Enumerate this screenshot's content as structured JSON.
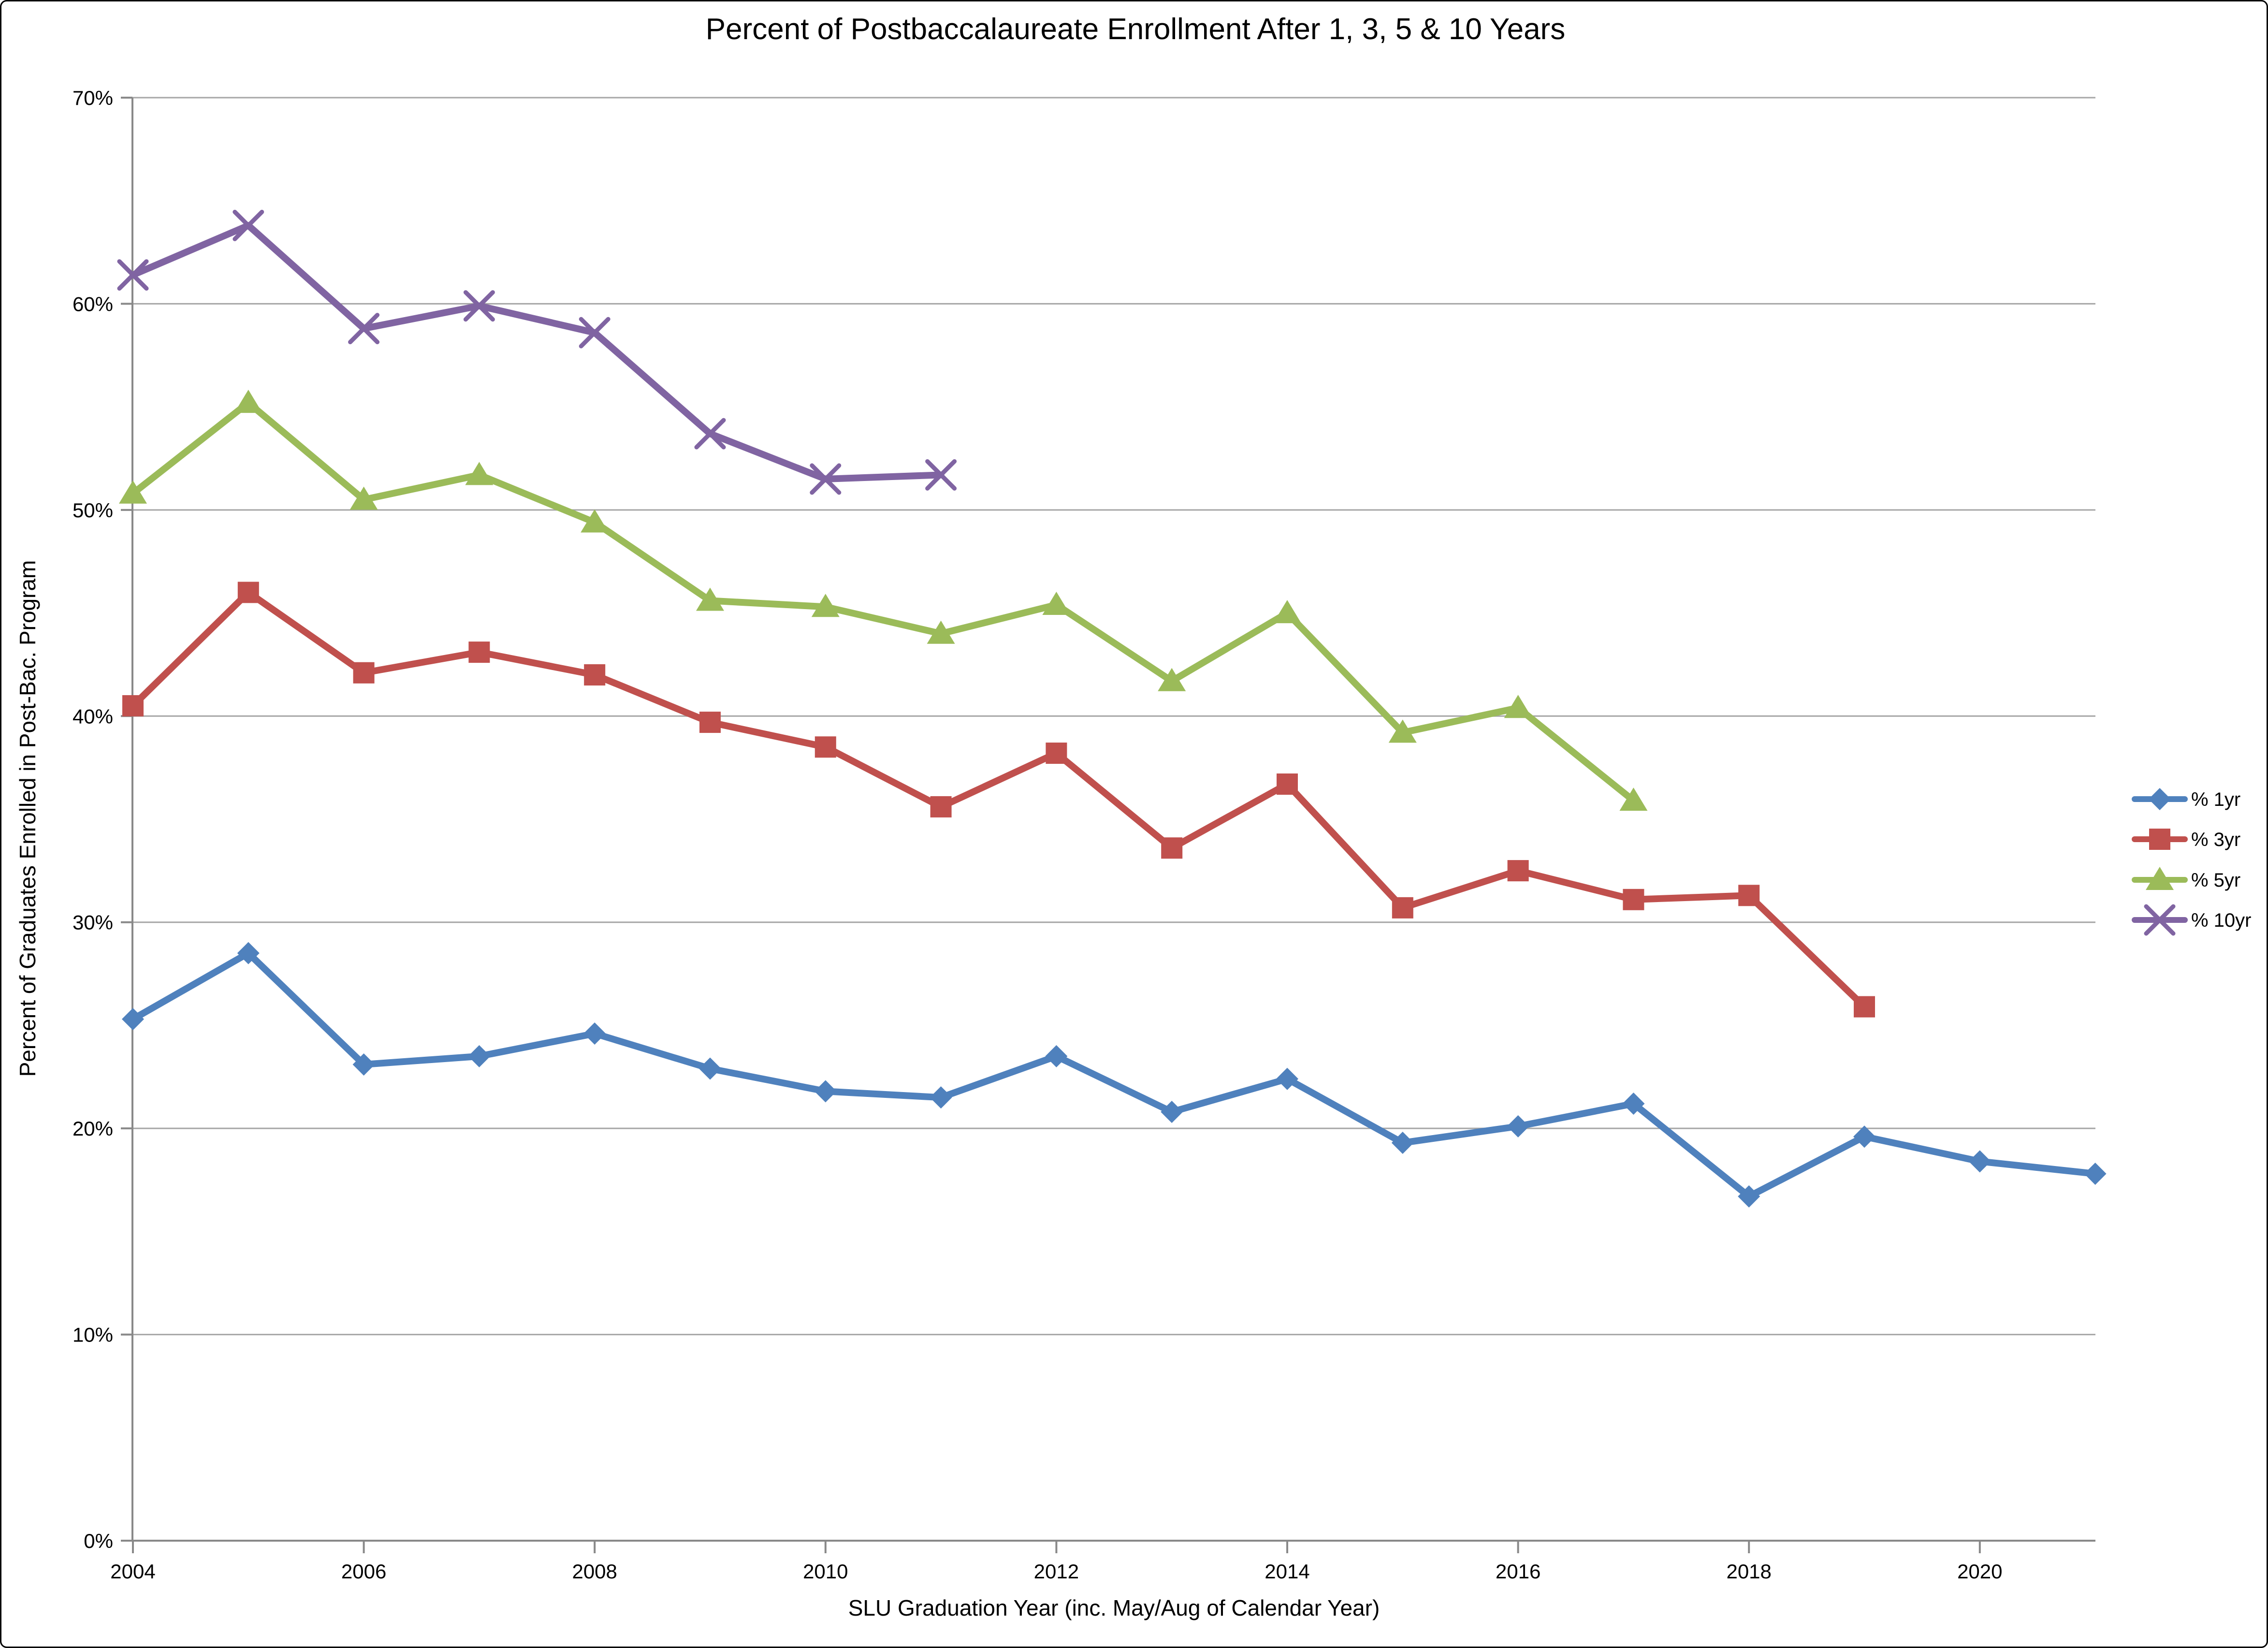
{
  "chart_data": {
    "type": "line",
    "title": "Percent of Postbaccalaureate Enrollment After 1, 3, 5 & 10 Years",
    "xlabel": "SLU Graduation Year (inc. May/Aug of Calendar Year)",
    "ylabel": "Percent of Graduates Enrolled in Post-Bac. Program",
    "x": [
      2004,
      2005,
      2006,
      2007,
      2008,
      2009,
      2010,
      2011,
      2012,
      2013,
      2014,
      2015,
      2016,
      2017,
      2018,
      2019,
      2020,
      2021
    ],
    "x_tick_labels": [
      "2004",
      "2006",
      "2008",
      "2010",
      "2012",
      "2014",
      "2016",
      "2018",
      "2020"
    ],
    "y_ticks": [
      "0%",
      "10%",
      "20%",
      "30%",
      "40%",
      "50%",
      "60%",
      "70%"
    ],
    "ylim": [
      0,
      70
    ],
    "grid": true,
    "legend_position": "right",
    "series": [
      {
        "name": "% 1yr",
        "color": "#4F81BD",
        "marker": "diamond",
        "values": [
          25.3,
          28.5,
          23.1,
          23.5,
          24.6,
          22.9,
          21.8,
          21.5,
          23.5,
          20.8,
          22.4,
          19.3,
          20.1,
          21.2,
          16.7,
          19.6,
          18.4,
          17.8
        ]
      },
      {
        "name": "% 3yr",
        "color": "#C0504D",
        "marker": "square",
        "values": [
          40.5,
          46.0,
          42.1,
          43.1,
          42.0,
          39.7,
          38.5,
          35.6,
          38.2,
          33.6,
          36.7,
          30.7,
          32.5,
          31.1,
          31.3,
          25.9,
          null,
          null
        ]
      },
      {
        "name": "% 5yr",
        "color": "#9BBB59",
        "marker": "triangle",
        "values": [
          50.8,
          55.2,
          50.5,
          51.7,
          49.4,
          45.6,
          45.3,
          44.0,
          45.4,
          41.7,
          45.0,
          39.2,
          40.4,
          35.9,
          null,
          null,
          null,
          null
        ]
      },
      {
        "name": "% 10yr",
        "color": "#8064A2",
        "marker": "x",
        "values": [
          61.4,
          63.8,
          58.8,
          59.9,
          58.6,
          53.7,
          51.5,
          51.7,
          null,
          null,
          null,
          null,
          null,
          null,
          null,
          null,
          null,
          null
        ]
      }
    ],
    "gridline_color": "#A6A6A6",
    "axis_color": "#898989",
    "text_color": "#000000"
  }
}
